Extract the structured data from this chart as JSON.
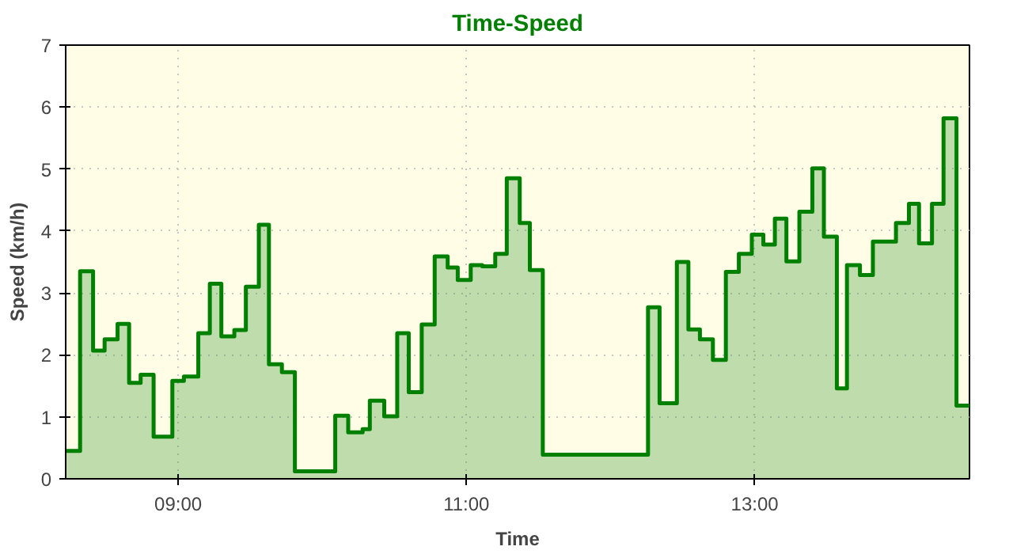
{
  "chart_data": {
    "type": "area",
    "title": "Time-Speed",
    "xlabel": "Time",
    "ylabel": "Speed (km/h)",
    "x": [
      8.22,
      8.32,
      8.32,
      8.41,
      8.41,
      8.49,
      8.49,
      8.58,
      8.58,
      8.66,
      8.66,
      8.74,
      8.74,
      8.83,
      8.83,
      8.96,
      8.96,
      9.04,
      9.04,
      9.14,
      9.14,
      9.22,
      9.22,
      9.3,
      9.3,
      9.39,
      9.39,
      9.47,
      9.47,
      9.56,
      9.56,
      9.63,
      9.63,
      9.72,
      9.72,
      9.81,
      9.81,
      10.09,
      10.09,
      10.18,
      10.18,
      10.28,
      10.28,
      10.33,
      10.33,
      10.43,
      10.43,
      10.52,
      10.52,
      10.6,
      10.6,
      10.69,
      10.69,
      10.78,
      10.78,
      10.87,
      10.87,
      10.94,
      10.94,
      11.03,
      11.03,
      11.11,
      11.11,
      11.2,
      11.2,
      11.28,
      11.28,
      11.37,
      11.37,
      11.44,
      11.44,
      11.53,
      11.53,
      12.26,
      12.26,
      12.34,
      12.34,
      12.46,
      12.46,
      12.54,
      12.54,
      12.62,
      12.62,
      12.71,
      12.71,
      12.8,
      12.8,
      12.89,
      12.89,
      12.98,
      12.98,
      13.06,
      13.06,
      13.14,
      13.14,
      13.22,
      13.22,
      13.31,
      13.31,
      13.4,
      13.4,
      13.48,
      13.48,
      13.57,
      13.57,
      13.64,
      13.64,
      13.73,
      13.73,
      13.82,
      13.82,
      13.98,
      13.98,
      14.07,
      14.07,
      14.14,
      14.14,
      14.23,
      14.23,
      14.31,
      14.31,
      14.4,
      14.4,
      14.49
    ],
    "series": [
      {
        "color": "#008000",
        "values": [
          0.45,
          0.45,
          3.35,
          3.35,
          2.07,
          2.07,
          2.25,
          2.25,
          2.5,
          2.5,
          1.55,
          1.55,
          1.68,
          1.68,
          0.68,
          0.68,
          1.58,
          1.58,
          1.65,
          1.65,
          2.35,
          2.35,
          3.15,
          3.15,
          2.3,
          2.3,
          2.4,
          2.4,
          3.1,
          3.1,
          4.1,
          4.1,
          1.85,
          1.85,
          1.72,
          1.72,
          0.12,
          0.12,
          1.02,
          1.02,
          0.75,
          0.75,
          0.8,
          0.8,
          1.26,
          1.26,
          1.01,
          1.01,
          2.35,
          2.35,
          1.4,
          1.4,
          2.49,
          2.49,
          3.59,
          3.59,
          3.41,
          3.41,
          3.21,
          3.21,
          3.45,
          3.45,
          3.43,
          3.43,
          3.63,
          3.63,
          4.85,
          4.85,
          4.13,
          4.13,
          3.37,
          3.37,
          0.39,
          0.39,
          2.77,
          2.77,
          1.22,
          1.22,
          3.5,
          3.5,
          2.41,
          2.41,
          2.25,
          2.25,
          1.92,
          1.92,
          3.34,
          3.34,
          3.63,
          3.63,
          3.94,
          3.94,
          3.78,
          3.78,
          4.2,
          4.2,
          3.51,
          3.51,
          4.31,
          4.31,
          5.01,
          5.01,
          3.91,
          3.91,
          1.46,
          1.46,
          3.45,
          3.45,
          3.29,
          3.29,
          3.83,
          3.83,
          4.13,
          4.13,
          4.44,
          4.44,
          3.8,
          3.8,
          4.44,
          4.44,
          5.82,
          5.82,
          1.18,
          1.18
        ]
      }
    ],
    "xlim": [
      8.22,
      14.49
    ],
    "xticks": [
      {
        "value": 9,
        "label": "09:00"
      },
      {
        "value": 11,
        "label": "11:00"
      },
      {
        "value": 13,
        "label": "13:00"
      }
    ],
    "ylim": [
      0,
      7
    ],
    "yticks": [
      0,
      1,
      2,
      3,
      4,
      5,
      6,
      7
    ],
    "grid": true,
    "line_style": "solid",
    "marker": "none"
  }
}
